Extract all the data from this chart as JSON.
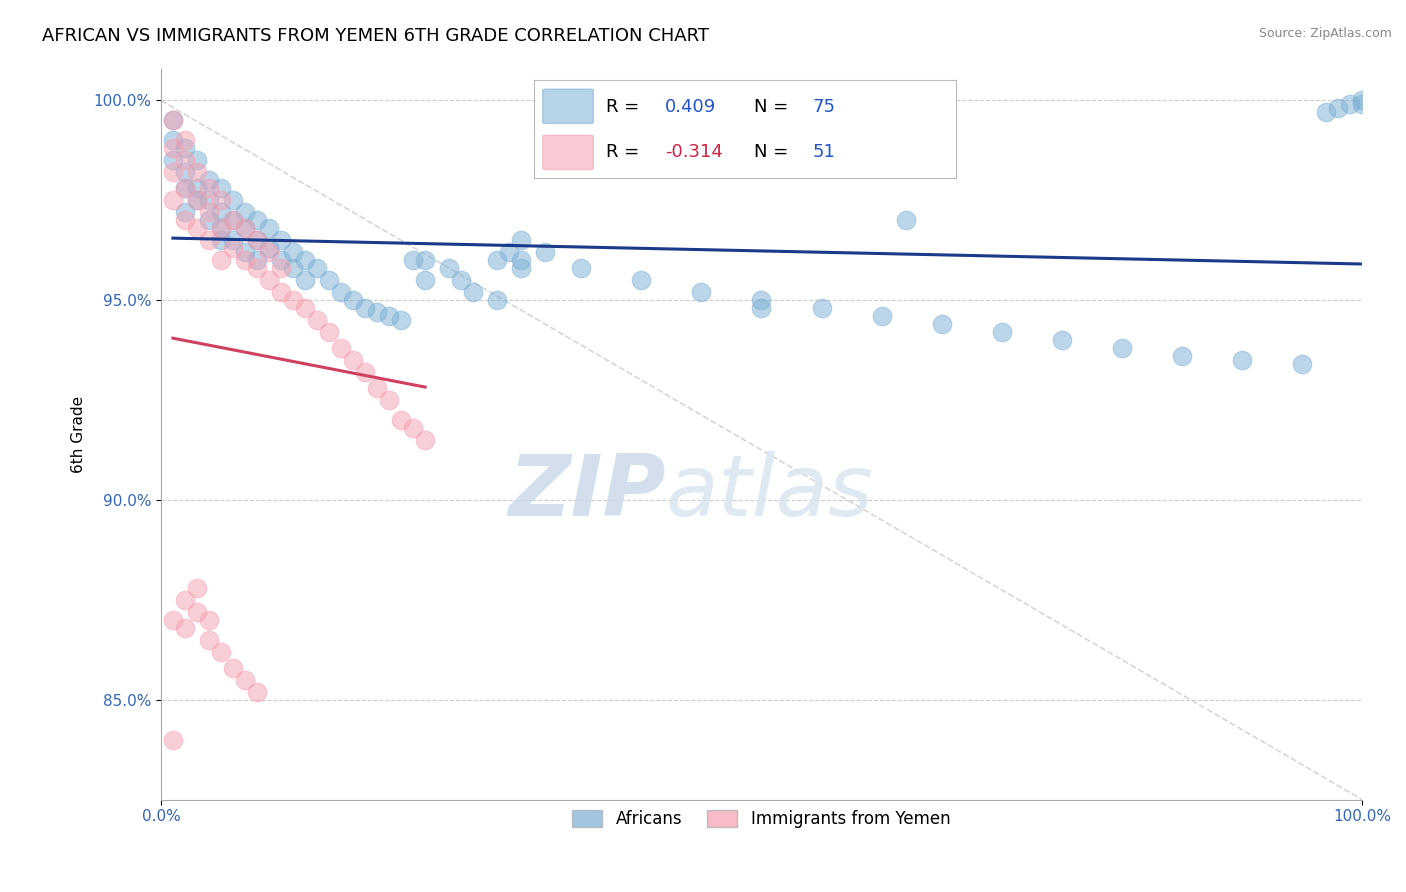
{
  "title": "AFRICAN VS IMMIGRANTS FROM YEMEN 6TH GRADE CORRELATION CHART",
  "source": "Source: ZipAtlas.com",
  "ylabel": "6th Grade",
  "watermark_zip": "ZIP",
  "watermark_atlas": "atlas",
  "legend_blue_label": "Africans",
  "legend_pink_label": "Immigrants from Yemen",
  "R_blue": 0.409,
  "N_blue": 75,
  "R_pink": -0.314,
  "N_pink": 51,
  "blue_color": "#7BAFD4",
  "pink_color": "#F4A0B0",
  "blue_line_color": "#1A3A8A",
  "pink_line_color": "#D04060",
  "diag_line_color": "#CCCCCC",
  "xlim": [
    0.0,
    1.0
  ],
  "ylim": [
    0.825,
    1.008
  ],
  "yticks": [
    0.85,
    0.9,
    0.95,
    1.0
  ],
  "ytick_labels": [
    "85.0%",
    "90.0%",
    "95.0%",
    "100.0%"
  ],
  "blue_x": [
    0.01,
    0.01,
    0.01,
    0.02,
    0.02,
    0.02,
    0.02,
    0.03,
    0.03,
    0.03,
    0.04,
    0.04,
    0.04,
    0.05,
    0.05,
    0.05,
    0.05,
    0.06,
    0.06,
    0.06,
    0.07,
    0.07,
    0.07,
    0.08,
    0.08,
    0.08,
    0.09,
    0.09,
    0.1,
    0.1,
    0.11,
    0.11,
    0.12,
    0.12,
    0.13,
    0.14,
    0.15,
    0.16,
    0.17,
    0.18,
    0.19,
    0.2,
    0.22,
    0.22,
    0.24,
    0.25,
    0.26,
    0.28,
    0.3,
    0.3,
    0.32,
    0.35,
    0.4,
    0.45,
    0.5,
    0.55,
    0.6,
    0.65,
    0.7,
    0.75,
    0.8,
    0.85,
    0.9,
    0.95,
    0.97,
    0.98,
    0.99,
    1.0,
    1.0,
    0.62,
    0.5,
    0.28,
    0.29,
    0.3,
    0.21
  ],
  "blue_y": [
    0.995,
    0.99,
    0.985,
    0.988,
    0.982,
    0.978,
    0.972,
    0.985,
    0.978,
    0.975,
    0.98,
    0.975,
    0.97,
    0.978,
    0.972,
    0.968,
    0.965,
    0.975,
    0.97,
    0.965,
    0.972,
    0.968,
    0.962,
    0.97,
    0.965,
    0.96,
    0.968,
    0.963,
    0.965,
    0.96,
    0.962,
    0.958,
    0.96,
    0.955,
    0.958,
    0.955,
    0.952,
    0.95,
    0.948,
    0.947,
    0.946,
    0.945,
    0.96,
    0.955,
    0.958,
    0.955,
    0.952,
    0.95,
    0.965,
    0.96,
    0.962,
    0.958,
    0.955,
    0.952,
    0.95,
    0.948,
    0.946,
    0.944,
    0.942,
    0.94,
    0.938,
    0.936,
    0.935,
    0.934,
    0.997,
    0.998,
    0.999,
    1.0,
    0.999,
    0.97,
    0.948,
    0.96,
    0.962,
    0.958,
    0.96
  ],
  "pink_x": [
    0.01,
    0.01,
    0.01,
    0.01,
    0.02,
    0.02,
    0.02,
    0.02,
    0.03,
    0.03,
    0.03,
    0.04,
    0.04,
    0.04,
    0.05,
    0.05,
    0.05,
    0.06,
    0.06,
    0.07,
    0.07,
    0.08,
    0.08,
    0.09,
    0.09,
    0.1,
    0.1,
    0.11,
    0.12,
    0.13,
    0.14,
    0.15,
    0.16,
    0.17,
    0.18,
    0.19,
    0.2,
    0.21,
    0.22,
    0.01,
    0.02,
    0.03,
    0.04,
    0.05,
    0.06,
    0.07,
    0.08,
    0.02,
    0.03,
    0.04,
    0.01
  ],
  "pink_y": [
    0.995,
    0.988,
    0.982,
    0.975,
    0.99,
    0.985,
    0.978,
    0.97,
    0.982,
    0.975,
    0.968,
    0.978,
    0.972,
    0.965,
    0.975,
    0.968,
    0.96,
    0.97,
    0.963,
    0.968,
    0.96,
    0.965,
    0.958,
    0.962,
    0.955,
    0.958,
    0.952,
    0.95,
    0.948,
    0.945,
    0.942,
    0.938,
    0.935,
    0.932,
    0.928,
    0.925,
    0.92,
    0.918,
    0.915,
    0.87,
    0.868,
    0.872,
    0.865,
    0.862,
    0.858,
    0.855,
    0.852,
    0.875,
    0.878,
    0.87,
    0.84
  ]
}
